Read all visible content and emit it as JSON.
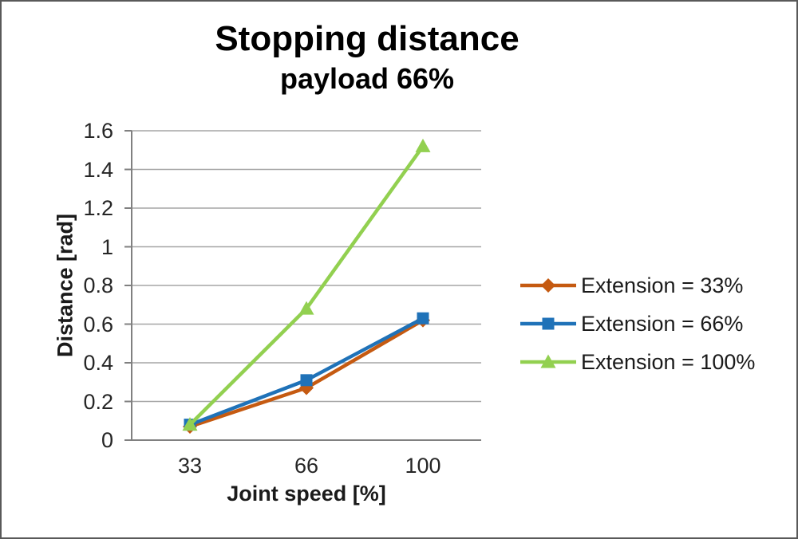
{
  "frame": {
    "background": "#FFFFFF",
    "border_color": "#595959"
  },
  "chart_data": {
    "type": "line",
    "title": "Stopping distance",
    "subtitle": "payload 66%",
    "xlabel": "Joint speed [%]",
    "ylabel": "Distance [rad]",
    "categories": [
      "33",
      "66",
      "100"
    ],
    "ylim": [
      0,
      1.6
    ],
    "ytick_step": 0.2,
    "ytick_labels": [
      "0",
      "0.2",
      "0.4",
      "0.6",
      "0.8",
      "1",
      "1.2",
      "1.4",
      "1.6"
    ],
    "grid": true,
    "legend_position": "right",
    "series": [
      {
        "name": "Extension = 33%",
        "marker": "diamond",
        "color": "#C55A11",
        "values": [
          0.07,
          0.27,
          0.62
        ]
      },
      {
        "name": "Extension = 66%",
        "marker": "square",
        "color": "#1F72B8",
        "values": [
          0.08,
          0.31,
          0.63
        ]
      },
      {
        "name": "Extension = 100%",
        "marker": "triangle",
        "color": "#92D050",
        "values": [
          0.08,
          0.68,
          1.52
        ]
      }
    ],
    "colors": {
      "gridline": "#A6A6A6",
      "axis": "#808080",
      "tick_label": "#262626",
      "text": "#000000"
    }
  }
}
